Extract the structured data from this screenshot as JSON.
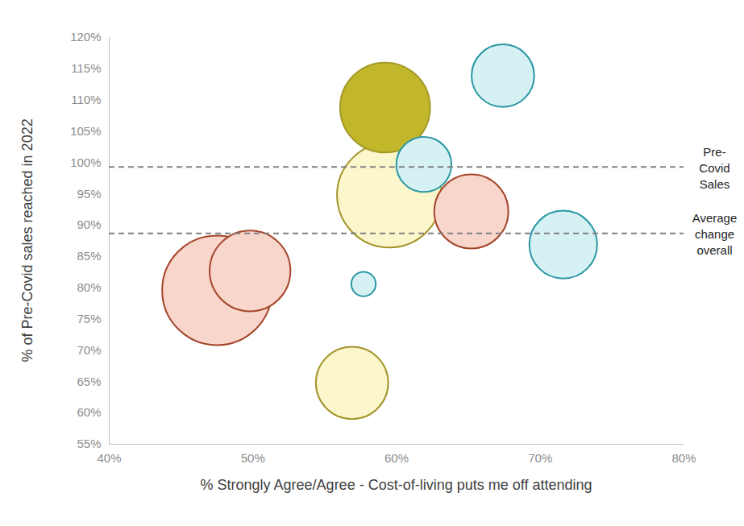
{
  "chart_data": {
    "type": "bubble",
    "xlabel": "% Strongly Agree/Agree - Cost-of-living puts me off attending",
    "ylabel": "% of Pre-Covid sales reached in 2022",
    "x": [
      47.5,
      49.8,
      59.5,
      59.2,
      61.9,
      67.4,
      65.2,
      71.6,
      57.7,
      56.9
    ],
    "values": [
      79.6,
      82.7,
      94.8,
      108.8,
      99.7,
      113.9,
      92.2,
      86.9,
      80.6,
      64.8
    ],
    "sizes": [
      46,
      25,
      42,
      31,
      11.6,
      15,
      21,
      17.6,
      2.3,
      20
    ],
    "colors": [
      "#f9d6cc",
      "#f9d6cc",
      "#fcf6cc",
      "#c2b72a",
      "#d6f1f4",
      "#d6f1f4",
      "#f9d6cc",
      "#d6f1f4",
      "#d6f1f4",
      "#fcf6cc"
    ],
    "lines": [
      {
        "value": 99.3,
        "label": "Pre-Covid Sales"
      },
      {
        "value": 88.7,
        "label": "Average change overall"
      }
    ],
    "xlim": [
      40,
      80
    ],
    "xticks": [
      {
        "value": 40,
        "label": "40%"
      },
      {
        "value": 50,
        "label": "50%"
      },
      {
        "value": 60,
        "label": "60%"
      },
      {
        "value": 70,
        "label": "70%"
      },
      {
        "value": 80,
        "label": "80%"
      }
    ],
    "ylim": [
      55,
      120
    ],
    "yticks": [
      {
        "value": 55,
        "label": "55%"
      },
      {
        "value": 60,
        "label": "60%"
      },
      {
        "value": 65,
        "label": "65%"
      },
      {
        "value": 70,
        "label": "70%"
      },
      {
        "value": 75,
        "label": "75%"
      },
      {
        "value": 80,
        "label": "80%"
      },
      {
        "value": 85,
        "label": "85%"
      },
      {
        "value": 90,
        "label": "90%"
      },
      {
        "value": 95,
        "label": "95%"
      },
      {
        "value": 100,
        "label": "100%"
      },
      {
        "value": 105,
        "label": "105%"
      },
      {
        "value": 110,
        "label": "110%"
      },
      {
        "value": 115,
        "label": "115%"
      },
      {
        "value": 120,
        "label": "120%"
      }
    ],
    "grid": false
  }
}
